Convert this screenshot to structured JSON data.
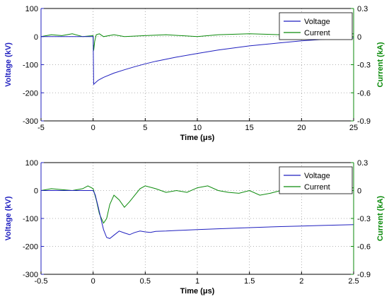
{
  "colors": {
    "voltage": "#1f1fbf",
    "current": "#0a8a0a",
    "grid": "#9a9a9a",
    "axis": "#000000"
  },
  "chart_data": [
    {
      "type": "line",
      "grid": true,
      "legend_position": "top-right",
      "xlabel": "Time (μs)",
      "ylabel_left": "Voltage (kV)",
      "ylabel_right": "Current (kA)",
      "xlim": [
        -5,
        25
      ],
      "ylim_left": [
        -300,
        100
      ],
      "ylim_right": [
        -0.9,
        0.3
      ],
      "xticks": [
        "-5",
        "0",
        "5",
        "10",
        "15",
        "20",
        "25"
      ],
      "yticks_left": [
        "100",
        "0",
        "-100",
        "-200",
        "-300"
      ],
      "yticks_right": [
        "0.3",
        "0",
        "-0.3",
        "-0.6",
        "-0.9"
      ],
      "series": [
        {
          "name": "Voltage",
          "axis": "left",
          "x": [
            -5,
            0,
            0.05,
            0.2,
            0.5,
            1,
            2,
            3,
            4,
            5,
            6,
            8,
            10,
            12,
            15,
            18,
            20,
            22,
            25
          ],
          "y": [
            0,
            0,
            -170,
            -165,
            -155,
            -145,
            -130,
            -118,
            -107,
            -97,
            -88,
            -73,
            -60,
            -48,
            -33,
            -22,
            -15,
            -10,
            -5
          ]
        },
        {
          "name": "Current",
          "axis": "right",
          "x": [
            -5,
            -4,
            -3,
            -2,
            -1,
            0,
            0.05,
            0.15,
            0.3,
            0.6,
            1,
            2,
            3,
            5,
            7,
            10,
            12,
            15,
            18,
            20,
            22,
            25
          ],
          "y": [
            0.0,
            0.02,
            0.01,
            0.03,
            0.0,
            0.01,
            -0.15,
            -0.05,
            0.02,
            0.03,
            0.0,
            0.02,
            0.0,
            0.01,
            0.02,
            0.0,
            0.02,
            0.03,
            0.02,
            0.01,
            0.02,
            0.03
          ]
        }
      ]
    },
    {
      "type": "line",
      "grid": true,
      "legend_position": "top-right",
      "xlabel": "Time (μs)",
      "ylabel_left": "Voltage (kV)",
      "ylabel_right": "Current (kA)",
      "xlim": [
        -0.5,
        2.5
      ],
      "ylim_left": [
        -300,
        100
      ],
      "ylim_right": [
        -0.9,
        0.3
      ],
      "xticks": [
        "-0.5",
        "0",
        "0.5",
        "1",
        "1.5",
        "2",
        "2.5"
      ],
      "yticks_left": [
        "100",
        "0",
        "-100",
        "-200",
        "-300"
      ],
      "yticks_right": [
        "0.3",
        "0",
        "-0.3",
        "-0.6",
        "-0.9"
      ],
      "series": [
        {
          "name": "Voltage",
          "axis": "left",
          "x": [
            -0.5,
            0,
            0.02,
            0.05,
            0.08,
            0.1,
            0.13,
            0.16,
            0.2,
            0.25,
            0.3,
            0.35,
            0.4,
            0.45,
            0.5,
            0.55,
            0.6,
            0.7,
            0.8,
            1.0,
            1.2,
            1.5,
            1.8,
            2.0,
            2.2,
            2.5
          ],
          "y": [
            0,
            0,
            -15,
            -60,
            -110,
            -140,
            -168,
            -172,
            -160,
            -145,
            -152,
            -158,
            -150,
            -145,
            -148,
            -150,
            -146,
            -145,
            -143,
            -140,
            -137,
            -133,
            -129,
            -127,
            -125,
            -122
          ]
        },
        {
          "name": "Current",
          "axis": "right",
          "x": [
            -0.5,
            -0.4,
            -0.3,
            -0.2,
            -0.1,
            -0.05,
            0,
            0.03,
            0.06,
            0.1,
            0.13,
            0.16,
            0.2,
            0.25,
            0.3,
            0.35,
            0.4,
            0.45,
            0.5,
            0.6,
            0.7,
            0.8,
            0.9,
            1.0,
            1.1,
            1.2,
            1.3,
            1.4,
            1.5,
            1.6,
            1.7,
            1.8,
            2.0,
            2.2,
            2.5
          ],
          "y": [
            0.0,
            0.02,
            0.01,
            0.0,
            0.02,
            0.05,
            0.02,
            -0.1,
            -0.25,
            -0.35,
            -0.3,
            -0.15,
            -0.05,
            -0.1,
            -0.18,
            -0.12,
            -0.05,
            0.02,
            0.05,
            0.02,
            -0.02,
            0.0,
            -0.02,
            0.03,
            0.05,
            0.0,
            -0.02,
            -0.03,
            0.0,
            -0.05,
            -0.03,
            0.0,
            0.01,
            0.02,
            0.03
          ]
        }
      ]
    }
  ]
}
